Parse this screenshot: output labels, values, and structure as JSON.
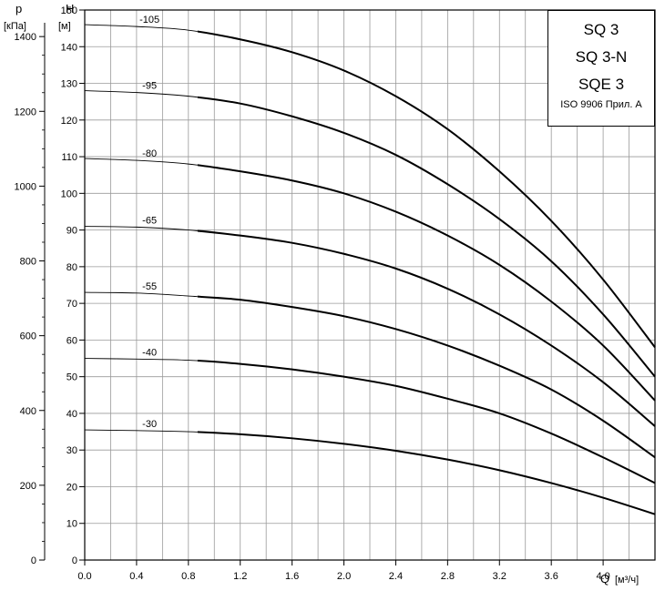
{
  "chart_data": {
    "type": "line",
    "axes": {
      "x": {
        "symbol": "Q",
        "unit": "[м³/ч]",
        "range": [
          0,
          4.4
        ],
        "ticks": [
          "0.0",
          "0.4",
          "0.8",
          "1.2",
          "1.6",
          "2.0",
          "2.4",
          "2.8",
          "3.2",
          "3.6",
          "4.0"
        ]
      },
      "y_head": {
        "symbol": "H",
        "unit": "[м]",
        "range": [
          0,
          150
        ],
        "ticks": [
          "0",
          "10",
          "20",
          "30",
          "40",
          "50",
          "60",
          "70",
          "80",
          "90",
          "100",
          "110",
          "120",
          "130",
          "140",
          "150"
        ]
      },
      "y_pressure": {
        "symbol": "p",
        "unit": "[кПа]",
        "range": [
          0,
          1400
        ],
        "ticks": [
          "0",
          "200",
          "400",
          "600",
          "800",
          "1000",
          "1200",
          "1400"
        ]
      }
    },
    "grid": true,
    "series": [
      {
        "name": "-105",
        "x": [
          0.0,
          0.4,
          0.8,
          1.2,
          1.6,
          2.0,
          2.4,
          2.8,
          3.2,
          3.6,
          4.0,
          4.4
        ],
        "y": [
          146,
          145.5,
          144.5,
          142,
          138.5,
          133.5,
          126.5,
          117.5,
          106,
          92.5,
          76.5,
          58
        ]
      },
      {
        "name": "-95",
        "x": [
          0.0,
          0.4,
          0.8,
          1.2,
          1.6,
          2.0,
          2.4,
          2.8,
          3.2,
          3.6,
          4.0,
          4.4
        ],
        "y": [
          128,
          127.5,
          126.5,
          124.5,
          121,
          116.5,
          110.5,
          102.5,
          93,
          81.5,
          67,
          50
        ]
      },
      {
        "name": "-80",
        "x": [
          0.0,
          0.4,
          0.8,
          1.2,
          1.6,
          2.0,
          2.4,
          2.8,
          3.2,
          3.6,
          4.0,
          4.4
        ],
        "y": [
          109.5,
          109,
          108,
          106,
          103.5,
          100,
          95,
          88.5,
          80.5,
          70.5,
          58.5,
          43.5
        ]
      },
      {
        "name": "-65",
        "x": [
          0.0,
          0.4,
          0.8,
          1.2,
          1.6,
          2.0,
          2.4,
          2.8,
          3.2,
          3.6,
          4.0,
          4.4
        ],
        "y": [
          91,
          90.8,
          90,
          88.5,
          86.5,
          83.5,
          79.5,
          74,
          67,
          58.5,
          48.5,
          36.5
        ]
      },
      {
        "name": "-55",
        "x": [
          0.0,
          0.4,
          0.8,
          1.2,
          1.6,
          2.0,
          2.4,
          2.8,
          3.2,
          3.6,
          4.0,
          4.4
        ],
        "y": [
          73,
          72.8,
          72,
          71,
          69,
          66.5,
          63,
          58.5,
          53,
          46.5,
          38,
          28
        ]
      },
      {
        "name": "-40",
        "x": [
          0.0,
          0.4,
          0.8,
          1.2,
          1.6,
          2.0,
          2.4,
          2.8,
          3.2,
          3.6,
          4.0,
          4.4
        ],
        "y": [
          55,
          54.8,
          54.5,
          53.5,
          52,
          50,
          47.5,
          44,
          40,
          34.5,
          28,
          21
        ]
      },
      {
        "name": "-30",
        "x": [
          0.0,
          0.4,
          0.8,
          1.2,
          1.6,
          2.0,
          2.4,
          2.8,
          3.2,
          3.6,
          4.0,
          4.4
        ],
        "y": [
          35.5,
          35.3,
          35,
          34.3,
          33.2,
          31.7,
          29.8,
          27.4,
          24.5,
          21,
          17,
          12.5
        ]
      }
    ],
    "legend": {
      "lines": [
        "SQ 3",
        "SQ 3-N",
        "SQE 3"
      ],
      "note": "ISO 9906 Прил. А",
      "placement": "top-right"
    }
  }
}
